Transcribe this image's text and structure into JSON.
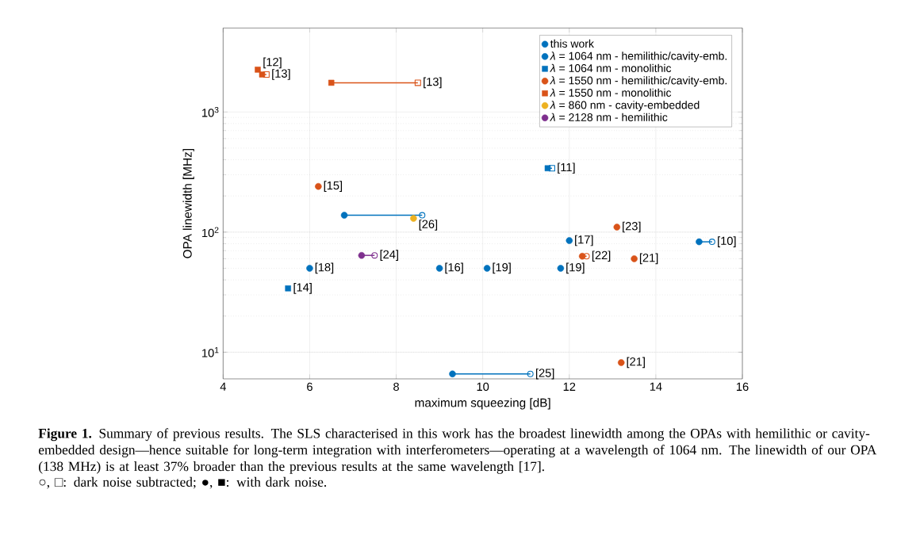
{
  "chart_data": {
    "type": "scatter",
    "xlabel": "maximum squeezing [dB]",
    "ylabel": "OPA linewidth [MHz]",
    "xlim": [
      4,
      16
    ],
    "xticks": [
      4,
      6,
      8,
      10,
      12,
      14,
      16
    ],
    "ylim": [
      6,
      5000
    ],
    "yticks": [
      {
        "value": 10,
        "label": "10$^{1}$"
      },
      {
        "value": 100,
        "label": "10$^{2}$"
      },
      {
        "value": 1000,
        "label": "10$^{3}$"
      }
    ],
    "log": "y",
    "grid": true,
    "legend": "top right",
    "series": [
      {
        "type": "line",
        "marker": "circle",
        "color": "#0072bd",
        "x": [
          6.8,
          8.6
        ],
        "values": [
          138,
          138
        ]
      },
      {
        "type": "line",
        "marker": "circle",
        "color": "#0072bd",
        "x": [
          15.0,
          15.3
        ],
        "values": [
          83,
          83
        ]
      },
      {
        "type": "line",
        "marker": "circle",
        "color": "#0072bd",
        "x": [
          9.3,
          11.1
        ],
        "values": [
          6.6,
          6.6
        ]
      },
      {
        "type": "line",
        "marker": "square",
        "color": "#0072bd",
        "x": [
          11.5,
          11.6
        ],
        "values": [
          340,
          340
        ]
      },
      {
        "type": "line",
        "marker": "circle",
        "color": "#d95319",
        "x": [
          12.3,
          12.4
        ],
        "values": [
          63,
          63
        ]
      },
      {
        "type": "line",
        "marker": "square",
        "color": "#d95319",
        "x": [
          4.9,
          5.0
        ],
        "values": [
          2050,
          2050
        ]
      },
      {
        "type": "line",
        "marker": "square",
        "color": "#d95319",
        "x": [
          6.5,
          8.5
        ],
        "values": [
          1750,
          1750
        ]
      },
      {
        "type": "line",
        "marker": "circle",
        "color": "#7e2f8e",
        "x": [
          7.2,
          7.5
        ],
        "values": [
          64,
          64
        ]
      },
      {
        "name": "this work",
        "marker": "circle",
        "color": "#0072bd",
        "x": [
          6.8
        ],
        "values": [
          138
        ]
      },
      {
        "name": "*λ* = 1064 nm - hemilithic/cavity-emb.",
        "marker": "circle",
        "color": "#0072bd",
        "x": [
          12.0,
          15.0,
          6.0,
          9.0,
          10.1,
          11.8,
          9.3
        ],
        "values": [
          85,
          83,
          50,
          50,
          50,
          50,
          6.6
        ]
      },
      {
        "name": "*λ* = 1064 nm - monolithic",
        "marker": "square",
        "color": "#0072bd",
        "x": [
          5.5,
          11.5
        ],
        "values": [
          34,
          340
        ]
      },
      {
        "name": "*λ* = 1550 nm - hemilithic/cavity-emb.",
        "marker": "circle",
        "color": "#d95319",
        "x": [
          6.2,
          13.1,
          12.3,
          13.5,
          13.2
        ],
        "values": [
          240,
          110,
          63,
          60,
          8.2
        ]
      },
      {
        "name": "*λ* = 1550 nm - monolithic",
        "marker": "square",
        "color": "#d95319",
        "x": [
          4.8,
          4.9,
          6.5
        ],
        "values": [
          2250,
          2050,
          1750
        ]
      },
      {
        "name": "*λ* = 860 nm - cavity-embedded",
        "marker": "circle",
        "color": "#edb120",
        "x": [
          8.4
        ],
        "values": [
          130
        ]
      },
      {
        "name": "*λ* = 2128 nm - hemilithic",
        "marker": "circle",
        "color": "#7e2f8e",
        "x": [
          7.2
        ],
        "values": [
          64
        ]
      }
    ],
    "annotations": [
      {
        "text": "[13]",
        "x": 5.0,
        "y": 2050
      },
      {
        "text": "[12]",
        "x": 4.8,
        "y": 2250
      },
      {
        "text": "[13]",
        "x": 8.5,
        "y": 1750
      },
      {
        "text": "[11]",
        "x": 11.6,
        "y": 340
      },
      {
        "text": "[15]",
        "x": 6.2,
        "y": 240
      },
      {
        "text": "[26]",
        "x": 8.4,
        "y": 130
      },
      {
        "text": "[23]",
        "x": 13.1,
        "y": 110
      },
      {
        "text": "[17]",
        "x": 12.0,
        "y": 85
      },
      {
        "text": "[10]",
        "x": 15.3,
        "y": 83
      },
      {
        "text": "[24]",
        "x": 7.5,
        "y": 64
      },
      {
        "text": "[22]",
        "x": 12.4,
        "y": 63
      },
      {
        "text": "[21]",
        "x": 13.5,
        "y": 60
      },
      {
        "text": "[18]",
        "x": 6.0,
        "y": 50
      },
      {
        "text": "[16]",
        "x": 9.0,
        "y": 50
      },
      {
        "text": "[19]",
        "x": 10.1,
        "y": 50
      },
      {
        "text": "[19]",
        "x": 11.8,
        "y": 50
      },
      {
        "text": "[14]",
        "x": 5.5,
        "y": 34
      },
      {
        "text": "[21]",
        "x": 13.2,
        "y": 8.2
      },
      {
        "text": "[25]",
        "x": 11.1,
        "y": 6.6
      },
      "**Figure 1.** Summary of previous results. The SLS characterised in this work has the broadest linewidth among the OPAs with hemilithic or cavity-embedded design—hence suitable for long-term integration with interferometers—operating at a wavelength of 1064 nm. The linewidth of our OPA (138 MHz) is at least 37% broader than the previous results at the same wavelength [17].",
      "○, □: dark noise subtracted; ●, ■: with dark noise."
    ]
  }
}
